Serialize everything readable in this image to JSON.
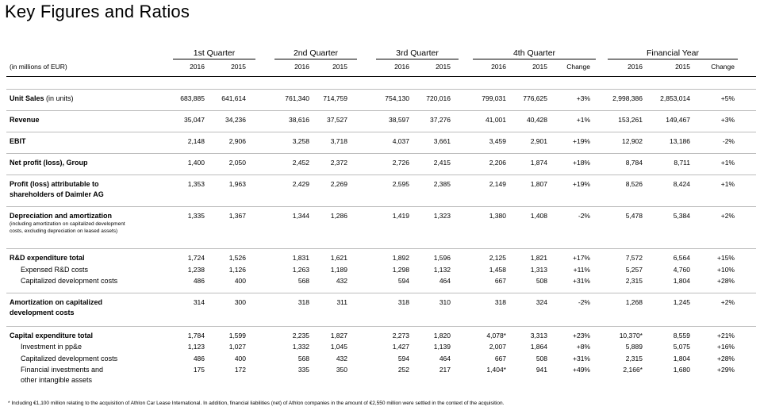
{
  "title": "Key Figures and Ratios",
  "unit_label": "(in millions of EUR)",
  "groups": [
    "1st Quarter",
    "2nd Quarter",
    "3rd Quarter",
    "4th Quarter",
    "Financial Year"
  ],
  "year_headers": [
    "2016",
    "2015",
    "2016",
    "2015",
    "2016",
    "2015",
    "2016",
    "2015",
    "Change",
    "2016",
    "2015",
    "Change"
  ],
  "rows": [
    {
      "label": "Unit Sales",
      "label_suffix": " (in units)",
      "style": "bold",
      "values": [
        "683,885",
        "641,614",
        "761,340",
        "714,759",
        "754,130",
        "720,016",
        "799,031",
        "776,625",
        "+3%",
        "2,998,386",
        "2,853,014",
        "+5%"
      ]
    },
    {
      "label": "Revenue",
      "style": "bold",
      "values": [
        "35,047",
        "34,236",
        "38,616",
        "37,527",
        "38,597",
        "37,276",
        "41,001",
        "40,428",
        "+1%",
        "153,261",
        "149,467",
        "+3%"
      ]
    },
    {
      "label": "EBIT",
      "style": "bold",
      "values": [
        "2,148",
        "2,906",
        "3,258",
        "3,718",
        "4,037",
        "3,661",
        "3,459",
        "2,901",
        "+19%",
        "12,902",
        "13,186",
        "-2%"
      ]
    },
    {
      "label": "Net profit (loss), Group",
      "style": "bold",
      "values": [
        "1,400",
        "2,050",
        "2,452",
        "2,372",
        "2,726",
        "2,415",
        "2,206",
        "1,874",
        "+18%",
        "8,784",
        "8,711",
        "+1%"
      ]
    },
    {
      "label": "Profit (loss) attributable to",
      "label2": "shareholders of Daimler AG",
      "style": "bold",
      "values": [
        "1,353",
        "1,963",
        "2,429",
        "2,269",
        "2,595",
        "2,385",
        "2,149",
        "1,807",
        "+19%",
        "8,526",
        "8,424",
        "+1%"
      ]
    },
    {
      "label": "Depreciation and amortization",
      "note1": "(including amortization on capitalized development",
      "note2": "costs, excluding depreciation on leased assets)",
      "style": "bold",
      "values": [
        "1,335",
        "1,367",
        "1,344",
        "1,286",
        "1,419",
        "1,323",
        "1,380",
        "1,408",
        "-2%",
        "5,478",
        "5,384",
        "+2%"
      ]
    },
    {
      "label": "R&D expenditure total",
      "style": "bold",
      "values": [
        "1,724",
        "1,526",
        "1,831",
        "1,621",
        "1,892",
        "1,596",
        "2,125",
        "1,821",
        "+17%",
        "7,572",
        "6,564",
        "+15%"
      ]
    },
    {
      "label": "Expensed R&D costs",
      "style": "indent",
      "values": [
        "1,238",
        "1,126",
        "1,263",
        "1,189",
        "1,298",
        "1,132",
        "1,458",
        "1,313",
        "+11%",
        "5,257",
        "4,760",
        "+10%"
      ]
    },
    {
      "label": "Capitalized development costs",
      "style": "indent",
      "values": [
        "486",
        "400",
        "568",
        "432",
        "594",
        "464",
        "667",
        "508",
        "+31%",
        "2,315",
        "1,804",
        "+28%"
      ]
    },
    {
      "label": "Amortization on capitalized",
      "label2": "development costs",
      "style": "bold",
      "values": [
        "314",
        "300",
        "318",
        "311",
        "318",
        "310",
        "318",
        "324",
        "-2%",
        "1,268",
        "1,245",
        "+2%"
      ]
    },
    {
      "label": "Capital expenditure total",
      "style": "bold",
      "values": [
        "1,784",
        "1,599",
        "2,235",
        "1,827",
        "2,273",
        "1,820",
        "4,078*",
        "3,313",
        "+23%",
        "10,370*",
        "8,559",
        "+21%"
      ]
    },
    {
      "label": "Investment in pp&e",
      "style": "indent",
      "values": [
        "1,123",
        "1,027",
        "1,332",
        "1,045",
        "1,427",
        "1,139",
        "2,007",
        "1,864",
        "+8%",
        "5,889",
        "5,075",
        "+16%"
      ]
    },
    {
      "label": "Capitalized development costs",
      "style": "indent",
      "values": [
        "486",
        "400",
        "568",
        "432",
        "594",
        "464",
        "667",
        "508",
        "+31%",
        "2,315",
        "1,804",
        "+28%"
      ]
    },
    {
      "label": "Financial investments and",
      "label2": "other intangible assets",
      "style": "indent",
      "values": [
        "175",
        "172",
        "335",
        "350",
        "252",
        "217",
        "1,404*",
        "941",
        "+49%",
        "2,166*",
        "1,680",
        "+29%"
      ]
    }
  ],
  "footnote": "* Including €1,100 million relating to the acquisition of Athlon Car Lease International. In addition, financial liabilities (net) of Athlon companies in the amount of €2,550 million were settled in the context of the acquisition."
}
